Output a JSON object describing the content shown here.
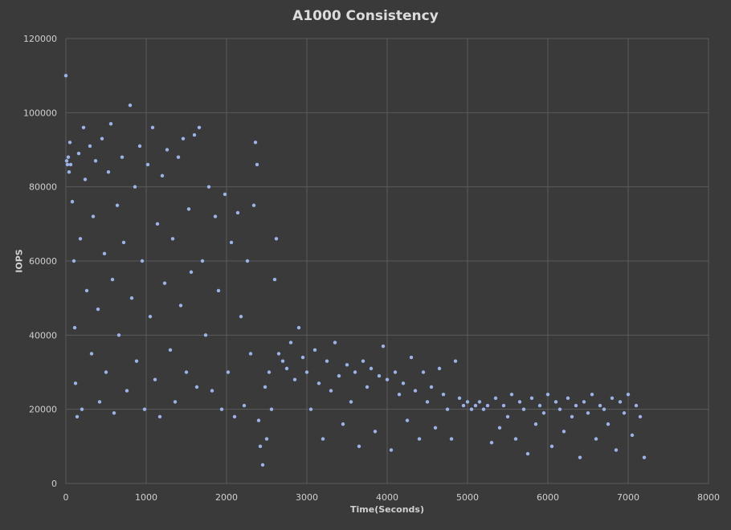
{
  "chart_data": {
    "type": "scatter",
    "title": "A1000 Consistency",
    "xlabel": "Time(Seconds)",
    "ylabel": "IOPS",
    "xlim": [
      0,
      8000
    ],
    "ylim": [
      0,
      120000
    ],
    "x_ticks": [
      0,
      1000,
      2000,
      3000,
      4000,
      5000,
      6000,
      7000,
      8000
    ],
    "y_ticks": [
      0,
      20000,
      40000,
      60000,
      80000,
      100000,
      120000
    ],
    "grid": true,
    "legend": "none",
    "colors": {
      "background": "#3a3a3a",
      "grid": "#5a5a5a",
      "points": "#9bb3ea",
      "text": "#dcdcdc"
    },
    "series": [
      {
        "points": [
          [
            0,
            110000
          ],
          [
            10,
            87000
          ],
          [
            20,
            86000
          ],
          [
            30,
            88000
          ],
          [
            40,
            84000
          ],
          [
            50,
            92000
          ],
          [
            60,
            86000
          ],
          [
            80,
            76000
          ],
          [
            100,
            60000
          ],
          [
            110,
            42000
          ],
          [
            120,
            27000
          ],
          [
            140,
            18000
          ],
          [
            160,
            89000
          ],
          [
            180,
            66000
          ],
          [
            200,
            20000
          ],
          [
            220,
            96000
          ],
          [
            240,
            82000
          ],
          [
            260,
            52000
          ],
          [
            300,
            91000
          ],
          [
            320,
            35000
          ],
          [
            340,
            72000
          ],
          [
            370,
            87000
          ],
          [
            400,
            47000
          ],
          [
            420,
            22000
          ],
          [
            450,
            93000
          ],
          [
            480,
            62000
          ],
          [
            500,
            30000
          ],
          [
            530,
            84000
          ],
          [
            560,
            97000
          ],
          [
            580,
            55000
          ],
          [
            600,
            19000
          ],
          [
            640,
            75000
          ],
          [
            660,
            40000
          ],
          [
            700,
            88000
          ],
          [
            720,
            65000
          ],
          [
            760,
            25000
          ],
          [
            800,
            102000
          ],
          [
            820,
            50000
          ],
          [
            860,
            80000
          ],
          [
            880,
            33000
          ],
          [
            920,
            91000
          ],
          [
            950,
            60000
          ],
          [
            980,
            20000
          ],
          [
            1020,
            86000
          ],
          [
            1050,
            45000
          ],
          [
            1080,
            96000
          ],
          [
            1110,
            28000
          ],
          [
            1140,
            70000
          ],
          [
            1170,
            18000
          ],
          [
            1200,
            83000
          ],
          [
            1230,
            54000
          ],
          [
            1260,
            90000
          ],
          [
            1300,
            36000
          ],
          [
            1330,
            66000
          ],
          [
            1360,
            22000
          ],
          [
            1400,
            88000
          ],
          [
            1430,
            48000
          ],
          [
            1460,
            93000
          ],
          [
            1500,
            30000
          ],
          [
            1530,
            74000
          ],
          [
            1560,
            57000
          ],
          [
            1600,
            94000
          ],
          [
            1630,
            26000
          ],
          [
            1660,
            96000
          ],
          [
            1700,
            60000
          ],
          [
            1740,
            40000
          ],
          [
            1780,
            80000
          ],
          [
            1820,
            25000
          ],
          [
            1860,
            72000
          ],
          [
            1900,
            52000
          ],
          [
            1940,
            20000
          ],
          [
            1980,
            78000
          ],
          [
            2020,
            30000
          ],
          [
            2060,
            65000
          ],
          [
            2100,
            18000
          ],
          [
            2140,
            73000
          ],
          [
            2180,
            45000
          ],
          [
            2220,
            21000
          ],
          [
            2260,
            60000
          ],
          [
            2300,
            35000
          ],
          [
            2340,
            75000
          ],
          [
            2360,
            92000
          ],
          [
            2380,
            86000
          ],
          [
            2400,
            17000
          ],
          [
            2420,
            10000
          ],
          [
            2450,
            5000
          ],
          [
            2480,
            26000
          ],
          [
            2500,
            12000
          ],
          [
            2530,
            30000
          ],
          [
            2560,
            20000
          ],
          [
            2600,
            55000
          ],
          [
            2620,
            66000
          ],
          [
            2650,
            35000
          ],
          [
            2700,
            33000
          ],
          [
            2750,
            31000
          ],
          [
            2800,
            38000
          ],
          [
            2850,
            28000
          ],
          [
            2900,
            42000
          ],
          [
            2950,
            34000
          ],
          [
            3000,
            30000
          ],
          [
            3050,
            20000
          ],
          [
            3100,
            36000
          ],
          [
            3150,
            27000
          ],
          [
            3200,
            12000
          ],
          [
            3250,
            33000
          ],
          [
            3300,
            25000
          ],
          [
            3350,
            38000
          ],
          [
            3400,
            29000
          ],
          [
            3450,
            16000
          ],
          [
            3500,
            32000
          ],
          [
            3550,
            22000
          ],
          [
            3600,
            30000
          ],
          [
            3650,
            10000
          ],
          [
            3700,
            33000
          ],
          [
            3750,
            26000
          ],
          [
            3800,
            31000
          ],
          [
            3850,
            14000
          ],
          [
            3900,
            29000
          ],
          [
            3950,
            37000
          ],
          [
            4000,
            28000
          ],
          [
            4050,
            9000
          ],
          [
            4100,
            30000
          ],
          [
            4150,
            24000
          ],
          [
            4200,
            27000
          ],
          [
            4250,
            17000
          ],
          [
            4300,
            34000
          ],
          [
            4350,
            25000
          ],
          [
            4400,
            12000
          ],
          [
            4450,
            30000
          ],
          [
            4500,
            22000
          ],
          [
            4550,
            26000
          ],
          [
            4600,
            15000
          ],
          [
            4650,
            31000
          ],
          [
            4700,
            24000
          ],
          [
            4750,
            20000
          ],
          [
            4800,
            12000
          ],
          [
            4850,
            33000
          ],
          [
            4900,
            23000
          ],
          [
            4950,
            21000
          ],
          [
            5000,
            22000
          ],
          [
            5050,
            20000
          ],
          [
            5100,
            21000
          ],
          [
            5150,
            22000
          ],
          [
            5200,
            20000
          ],
          [
            5250,
            21000
          ],
          [
            5300,
            11000
          ],
          [
            5350,
            23000
          ],
          [
            5400,
            15000
          ],
          [
            5450,
            21000
          ],
          [
            5500,
            18000
          ],
          [
            5550,
            24000
          ],
          [
            5600,
            12000
          ],
          [
            5650,
            22000
          ],
          [
            5700,
            20000
          ],
          [
            5750,
            8000
          ],
          [
            5800,
            23000
          ],
          [
            5850,
            16000
          ],
          [
            5900,
            21000
          ],
          [
            5950,
            19000
          ],
          [
            6000,
            24000
          ],
          [
            6050,
            10000
          ],
          [
            6100,
            22000
          ],
          [
            6150,
            20000
          ],
          [
            6200,
            14000
          ],
          [
            6250,
            23000
          ],
          [
            6300,
            18000
          ],
          [
            6350,
            21000
          ],
          [
            6400,
            7000
          ],
          [
            6450,
            22000
          ],
          [
            6500,
            19000
          ],
          [
            6550,
            24000
          ],
          [
            6600,
            12000
          ],
          [
            6650,
            21000
          ],
          [
            6700,
            20000
          ],
          [
            6750,
            16000
          ],
          [
            6800,
            23000
          ],
          [
            6850,
            9000
          ],
          [
            6900,
            22000
          ],
          [
            6950,
            19000
          ],
          [
            7000,
            24000
          ],
          [
            7050,
            13000
          ],
          [
            7100,
            21000
          ],
          [
            7150,
            18000
          ],
          [
            7200,
            7000
          ]
        ]
      }
    ]
  }
}
